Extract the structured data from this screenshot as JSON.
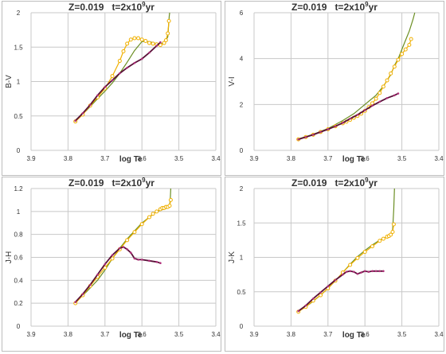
{
  "chart_data": [
    {
      "type": "line",
      "title_parts": {
        "z": "Z=0.019",
        "t": "t=2x10",
        "exp": "9",
        "unit": "yr"
      },
      "xlabel": "log Te",
      "ylabel": "B-V",
      "xlim": [
        3.9,
        3.4
      ],
      "ylim": [
        0,
        2
      ],
      "xticks": [
        "3.9",
        "3.8",
        "3.7",
        "3.6",
        "3.5",
        "3.4"
      ],
      "yticks": [
        "0",
        "0.5",
        "1",
        "1.5",
        "2"
      ],
      "series": [
        {
          "color": "#6b8e23",
          "marker": "none",
          "x": [
            3.78,
            3.75,
            3.72,
            3.7,
            3.68,
            3.66,
            3.64,
            3.62,
            3.6,
            3.58,
            3.56,
            3.55,
            3.545,
            3.54,
            3.535,
            3.53,
            3.528,
            3.526,
            3.525
          ],
          "y": [
            0.44,
            0.58,
            0.75,
            0.86,
            0.98,
            1.12,
            1.28,
            1.45,
            1.58,
            1.58,
            1.55,
            1.54,
            1.56,
            1.58,
            1.6,
            1.65,
            1.8,
            1.95,
            2.0
          ]
        },
        {
          "color": "#f0b000",
          "marker": "circle",
          "x": [
            3.78,
            3.76,
            3.74,
            3.72,
            3.7,
            3.68,
            3.66,
            3.65,
            3.64,
            3.63,
            3.62,
            3.61,
            3.6,
            3.59,
            3.58,
            3.57,
            3.56,
            3.55,
            3.54,
            3.535,
            3.53,
            3.527
          ],
          "y": [
            0.42,
            0.52,
            0.65,
            0.77,
            0.9,
            1.08,
            1.3,
            1.44,
            1.55,
            1.61,
            1.63,
            1.63,
            1.61,
            1.59,
            1.56,
            1.55,
            1.54,
            1.53,
            1.56,
            1.6,
            1.7,
            1.88
          ]
        },
        {
          "color": "#5a1038",
          "marker": "dot",
          "x": [
            3.78,
            3.76,
            3.74,
            3.72,
            3.7,
            3.68,
            3.66,
            3.64,
            3.62,
            3.6,
            3.58,
            3.56,
            3.55
          ],
          "y": [
            0.43,
            0.54,
            0.66,
            0.8,
            0.92,
            1.02,
            1.12,
            1.2,
            1.27,
            1.33,
            1.42,
            1.52,
            1.57
          ]
        }
      ]
    },
    {
      "type": "line",
      "title_parts": {
        "z": "Z=0.019",
        "t": "t=2x10",
        "exp": "9",
        "unit": "yr"
      },
      "xlabel": "log Te",
      "ylabel": "V-I",
      "xlim": [
        3.9,
        3.4
      ],
      "ylim": [
        0,
        6
      ],
      "xticks": [
        "3.9",
        "3.8",
        "3.7",
        "3.6",
        "3.5",
        "3.4"
      ],
      "yticks": [
        "0",
        "2",
        "4",
        "6"
      ],
      "series": [
        {
          "color": "#6b8e23",
          "marker": "none",
          "x": [
            3.78,
            3.74,
            3.7,
            3.66,
            3.63,
            3.6,
            3.57,
            3.55,
            3.53,
            3.52,
            3.51,
            3.5,
            3.49,
            3.48,
            3.47,
            3.465
          ],
          "y": [
            0.5,
            0.7,
            0.95,
            1.3,
            1.6,
            2.0,
            2.4,
            2.8,
            3.3,
            3.7,
            4.0,
            4.4,
            4.8,
            5.2,
            5.7,
            6.0
          ]
        },
        {
          "color": "#f0b000",
          "marker": "circle",
          "x": [
            3.78,
            3.76,
            3.74,
            3.72,
            3.7,
            3.68,
            3.66,
            3.65,
            3.64,
            3.63,
            3.62,
            3.61,
            3.6,
            3.59,
            3.58,
            3.57,
            3.56,
            3.55,
            3.54,
            3.53,
            3.52,
            3.51,
            3.5,
            3.49,
            3.48,
            3.475
          ],
          "y": [
            0.48,
            0.58,
            0.68,
            0.8,
            0.92,
            1.05,
            1.18,
            1.25,
            1.33,
            1.42,
            1.5,
            1.6,
            1.72,
            1.88,
            2.05,
            2.25,
            2.5,
            2.78,
            3.05,
            3.35,
            3.65,
            3.95,
            4.2,
            4.4,
            4.6,
            4.85
          ]
        },
        {
          "color": "#5a1038",
          "marker": "dot",
          "x": [
            3.78,
            3.76,
            3.74,
            3.72,
            3.7,
            3.68,
            3.66,
            3.64,
            3.62,
            3.6,
            3.58,
            3.56,
            3.54,
            3.52,
            3.51
          ],
          "y": [
            0.48,
            0.58,
            0.68,
            0.8,
            0.92,
            1.05,
            1.2,
            1.38,
            1.55,
            1.75,
            1.95,
            2.12,
            2.28,
            2.4,
            2.48
          ]
        }
      ]
    },
    {
      "type": "line",
      "title_parts": {
        "z": "Z=0.019",
        "t": "t=2x10",
        "exp": "9",
        "unit": "yr"
      },
      "xlabel": "log Te",
      "ylabel": "J-H",
      "xlim": [
        3.9,
        3.4
      ],
      "ylim": [
        0,
        1.2
      ],
      "xticks": [
        "3.9",
        "3.8",
        "3.7",
        "3.6",
        "3.5",
        "3.4"
      ],
      "yticks": [
        "0",
        "0.2",
        "0.4",
        "0.6",
        "0.8",
        "1",
        "1.2"
      ],
      "series": [
        {
          "color": "#6b8e23",
          "marker": "none",
          "x": [
            3.78,
            3.75,
            3.72,
            3.7,
            3.68,
            3.66,
            3.64,
            3.62,
            3.6,
            3.58,
            3.56,
            3.54,
            3.53,
            3.525,
            3.523,
            3.522
          ],
          "y": [
            0.21,
            0.3,
            0.4,
            0.49,
            0.59,
            0.68,
            0.76,
            0.83,
            0.9,
            0.95,
            1.0,
            1.02,
            1.03,
            1.05,
            1.12,
            1.2
          ]
        },
        {
          "color": "#f0b000",
          "marker": "circle",
          "x": [
            3.78,
            3.76,
            3.74,
            3.72,
            3.7,
            3.68,
            3.66,
            3.64,
            3.62,
            3.6,
            3.58,
            3.57,
            3.56,
            3.55,
            3.545,
            3.54,
            3.535,
            3.53,
            3.525,
            3.522
          ],
          "y": [
            0.2,
            0.27,
            0.35,
            0.43,
            0.51,
            0.59,
            0.67,
            0.75,
            0.82,
            0.89,
            0.95,
            0.98,
            1.0,
            1.02,
            1.03,
            1.03,
            1.04,
            1.04,
            1.05,
            1.1
          ]
        },
        {
          "color": "#5a1038",
          "marker": "dot",
          "x": [
            3.78,
            3.76,
            3.74,
            3.72,
            3.7,
            3.68,
            3.66,
            3.65,
            3.64,
            3.63,
            3.62,
            3.61,
            3.6,
            3.58,
            3.56,
            3.55
          ],
          "y": [
            0.21,
            0.28,
            0.36,
            0.45,
            0.54,
            0.62,
            0.68,
            0.69,
            0.67,
            0.64,
            0.59,
            0.58,
            0.58,
            0.57,
            0.56,
            0.55
          ]
        }
      ]
    },
    {
      "type": "line",
      "title_parts": {
        "z": "Z=0.019",
        "t": "t=2x10",
        "exp": "9",
        "unit": "yr"
      },
      "xlabel": "log Te",
      "ylabel": "J-K",
      "xlim": [
        3.9,
        3.4
      ],
      "ylim": [
        0,
        2
      ],
      "xticks": [
        "3.9",
        "3.8",
        "3.7",
        "3.6",
        "3.5",
        "3.4"
      ],
      "yticks": [
        "0",
        "0.5",
        "1",
        "1.5",
        "2"
      ],
      "series": [
        {
          "color": "#6b8e23",
          "marker": "none",
          "x": [
            3.78,
            3.75,
            3.72,
            3.7,
            3.68,
            3.66,
            3.64,
            3.62,
            3.6,
            3.58,
            3.56,
            3.54,
            3.53,
            3.525,
            3.522,
            3.52
          ],
          "y": [
            0.22,
            0.32,
            0.45,
            0.55,
            0.66,
            0.78,
            0.9,
            1.01,
            1.1,
            1.18,
            1.25,
            1.3,
            1.34,
            1.4,
            1.7,
            2.0
          ]
        },
        {
          "color": "#f0b000",
          "marker": "circle",
          "x": [
            3.78,
            3.76,
            3.74,
            3.72,
            3.7,
            3.68,
            3.66,
            3.64,
            3.62,
            3.6,
            3.58,
            3.56,
            3.55,
            3.54,
            3.535,
            3.53,
            3.525,
            3.522
          ],
          "y": [
            0.21,
            0.28,
            0.37,
            0.45,
            0.55,
            0.66,
            0.78,
            0.89,
            0.99,
            1.08,
            1.16,
            1.24,
            1.27,
            1.3,
            1.31,
            1.33,
            1.37,
            1.48
          ]
        },
        {
          "color": "#5a1038",
          "marker": "dot",
          "x": [
            3.78,
            3.76,
            3.74,
            3.72,
            3.7,
            3.68,
            3.66,
            3.65,
            3.64,
            3.63,
            3.62,
            3.61,
            3.6,
            3.59,
            3.58,
            3.57,
            3.56,
            3.55
          ],
          "y": [
            0.22,
            0.3,
            0.4,
            0.49,
            0.58,
            0.67,
            0.75,
            0.79,
            0.8,
            0.79,
            0.76,
            0.78,
            0.8,
            0.79,
            0.8,
            0.8,
            0.8,
            0.8
          ]
        }
      ]
    }
  ]
}
